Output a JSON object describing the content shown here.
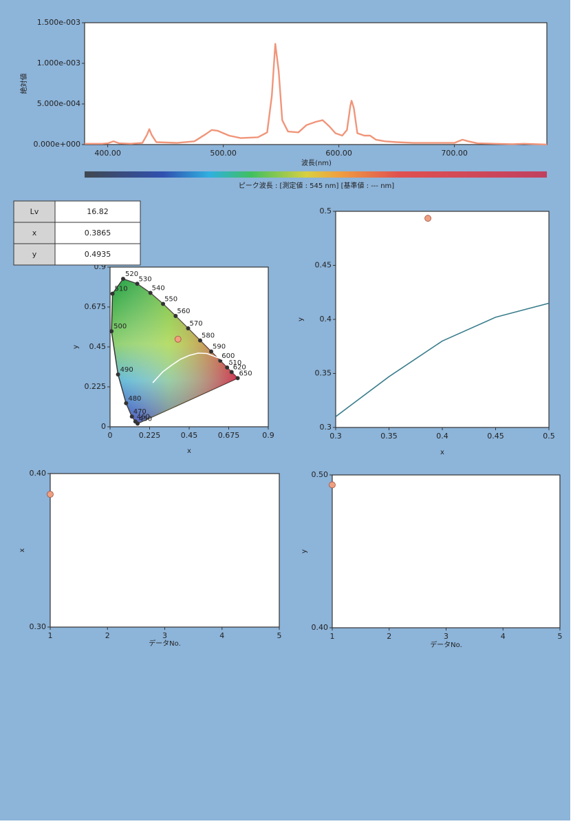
{
  "table": {
    "rows": [
      [
        "Lv",
        "16.82"
      ],
      [
        "x",
        "0.3865"
      ],
      [
        "y",
        "0.4935"
      ]
    ]
  },
  "chart_data": [
    {
      "type": "line",
      "ylabel": "絶対値",
      "xlabel": "波長(nm)",
      "caption": "ピーク波長 : [測定値 : 545 nm] [基準値 : --- nm]",
      "x": [
        380,
        395,
        400,
        405,
        410,
        420,
        430,
        434,
        436,
        438,
        442,
        460,
        475,
        485,
        490,
        495,
        505,
        515,
        530,
        538,
        542,
        545,
        548,
        551,
        556,
        565,
        572,
        580,
        586,
        592,
        597,
        603,
        607,
        610,
        611,
        613,
        616,
        622,
        627,
        632,
        640,
        650,
        665,
        700,
        707,
        712,
        720,
        750,
        760,
        780
      ],
      "series": [
        {
          "color": "#f0957a",
          "values": [
            1e-05,
            1e-05,
            1.5e-05,
            4e-05,
            1.5e-05,
            1e-05,
            2e-05,
            0.00012,
            0.00019,
            0.00012,
            3e-05,
            2e-05,
            4e-05,
            0.00013,
            0.00018,
            0.00017,
            0.00011,
            8e-05,
            9e-05,
            0.00015,
            0.0006,
            0.00124,
            0.0009,
            0.0003,
            0.00016,
            0.00015,
            0.00024,
            0.00028,
            0.0003,
            0.00022,
            0.00014,
            0.00011,
            0.00018,
            0.00048,
            0.00054,
            0.00045,
            0.00014,
            0.00011,
            0.00011,
            6e-05,
            4e-05,
            3e-05,
            2e-05,
            2e-05,
            6e-05,
            4e-05,
            1.5e-05,
            5e-06,
            1e-05,
            0
          ]
        }
      ],
      "xlim": [
        380,
        780
      ],
      "xticks": [
        {
          "value": 400,
          "label": "400.00"
        },
        {
          "value": 500,
          "label": "500.00"
        },
        {
          "value": 600,
          "label": "600.00"
        },
        {
          "value": 700,
          "label": "700.00"
        }
      ],
      "ylim": [
        0,
        0.0015
      ],
      "yticks": [
        {
          "value": 0,
          "label": "0.000e+000"
        },
        {
          "value": 0.0005,
          "label": "5.000e-004"
        },
        {
          "value": 0.001,
          "label": "1.000e-003"
        },
        {
          "value": 0.0015,
          "label": "1.500e-003"
        }
      ]
    },
    {
      "type": "scatter",
      "xlabel": "x",
      "ylabel": "y",
      "xlim": [
        0,
        0.9
      ],
      "ylim": [
        0,
        0.9
      ],
      "xticks": [
        0,
        0.225,
        0.45,
        0.675,
        0.9
      ],
      "yticks": [
        0,
        0.225,
        0.45,
        0.675,
        0.9
      ],
      "x": [
        0.3865
      ],
      "series": [
        {
          "color": "#f0a080",
          "values": [
            0.4935
          ]
        }
      ],
      "locus": {
        "labels": [
          "450",
          "460",
          "470",
          "480",
          "490",
          "500",
          "510",
          "520",
          "530",
          "540",
          "550",
          "560",
          "570",
          "580",
          "590",
          "600",
          "610",
          "620",
          "650"
        ],
        "x": [
          0.1566,
          0.144,
          0.1241,
          0.0913,
          0.0454,
          0.0082,
          0.0139,
          0.0743,
          0.1547,
          0.2296,
          0.3016,
          0.3731,
          0.4441,
          0.5125,
          0.5752,
          0.627,
          0.6658,
          0.6915,
          0.726
        ],
        "y": [
          0.0177,
          0.0297,
          0.0578,
          0.1327,
          0.295,
          0.5384,
          0.7502,
          0.8338,
          0.8059,
          0.7543,
          0.6923,
          0.6245,
          0.5547,
          0.4866,
          0.4242,
          0.3725,
          0.334,
          0.3083,
          0.274
        ]
      },
      "curve": {
        "color": "#ffffff",
        "x": [
          0.243,
          0.3,
          0.35,
          0.4,
          0.45,
          0.5,
          0.55,
          0.6,
          0.685
        ],
        "y": [
          0.248,
          0.31,
          0.347,
          0.38,
          0.402,
          0.415,
          0.413,
          0.395,
          0.361
        ]
      }
    },
    {
      "type": "scatter",
      "xlabel": "x",
      "ylabel": "y",
      "xlim": [
        0.3,
        0.5
      ],
      "ylim": [
        0.3,
        0.5
      ],
      "xticks": [
        0.3,
        0.35,
        0.4,
        0.45,
        0.5
      ],
      "yticks": [
        0.3,
        0.35,
        0.4,
        0.45,
        0.5
      ],
      "x": [
        0.3865
      ],
      "series": [
        {
          "color": "#f0a080",
          "values": [
            0.4935
          ]
        }
      ],
      "curve": {
        "color": "#3a7d8c",
        "x": [
          0.3,
          0.35,
          0.4,
          0.45,
          0.5
        ],
        "y": [
          0.31,
          0.347,
          0.38,
          0.402,
          0.415
        ]
      }
    },
    {
      "type": "scatter",
      "xlabel": "データNo.",
      "ylabel": "x",
      "xlim": [
        1,
        5
      ],
      "xticks": [
        1,
        2,
        3,
        4,
        5
      ],
      "ylim": [
        0.3,
        0.4
      ],
      "yticks": [
        {
          "value": 0.3,
          "label": "0.30"
        },
        {
          "value": 0.4,
          "label": "0.40"
        }
      ],
      "x": [
        1
      ],
      "series": [
        {
          "color": "#f0a080",
          "values": [
            0.3865
          ]
        }
      ]
    },
    {
      "type": "scatter",
      "xlabel": "データNo.",
      "ylabel": "y",
      "xlim": [
        1,
        5
      ],
      "xticks": [
        1,
        2,
        3,
        4,
        5
      ],
      "ylim": [
        0.4,
        0.5
      ],
      "yticks": [
        {
          "value": 0.4,
          "label": "0.40"
        },
        {
          "value": 0.5,
          "label": "0.50"
        }
      ],
      "x": [
        1
      ],
      "series": [
        {
          "color": "#f0a080",
          "values": [
            0.4935
          ]
        }
      ]
    }
  ]
}
